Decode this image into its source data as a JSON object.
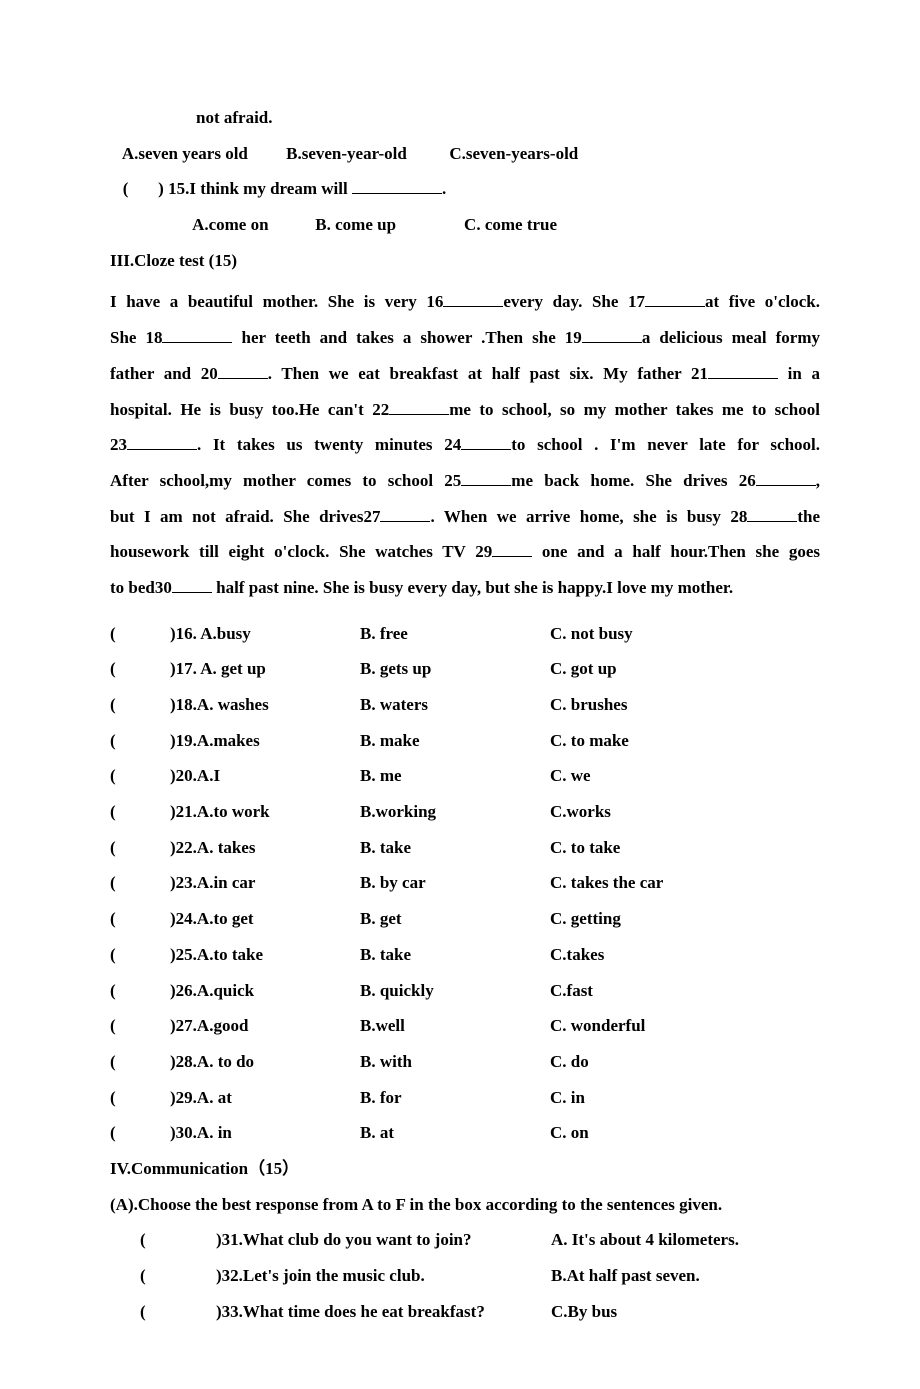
{
  "top": {
    "line_notafraid": "not afraid.",
    "q14opts": {
      "a": "A.seven years old",
      "b": "B.seven-year-old",
      "c": "C.seven-years-old"
    },
    "q15text_prefix": "(       ) 15.I think my dream will ",
    "q15text_suffix": ".",
    "q15opts": {
      "a": "A.come on",
      "b": "B. come up",
      "c": "C. come true"
    }
  },
  "sectionIII": "III.Cloze test (15)",
  "passage": {
    "l1a": "I have a beautiful mother. She is very 16",
    "l1b": "every day. She 17",
    "l1c": "at five o'clock.",
    "l2a": "She 18",
    "l2b": " her teeth and takes a shower .Then she 19",
    "l2c": "a delicious meal formy",
    "l3a": "father and 20",
    "l3b": ". Then we eat breakfast at half past six. My father 21",
    "l3c": " in a",
    "l4a": "hospital. He is busy too.He can't 22",
    "l4b": "me to school, so my mother takes me to school",
    "l5a": "23",
    "l5b": ". It takes us twenty minutes 24",
    "l5c": "to school . I'm never late for school.",
    "l6a": "After school,my mother comes to school 25",
    "l6b": "me back home. She drives 26",
    "l6c": ",",
    "l7a": "but I am not afraid. She drives27",
    "l7b": ". When we arrive home, she is busy 28",
    "l7c": "the",
    "l8a": "housework till eight o'clock. She watches TV 29",
    "l8b": " one and a half hour.Then she goes",
    "l9a": "to bed30",
    "l9b": " half past nine. She is busy every day, but she is happy.I love my mother."
  },
  "cloze": [
    {
      "n": ")16. A.busy",
      "b": "B. free",
      "c": "C. not busy"
    },
    {
      "n": ")17. A. get up",
      "b": "B. gets up",
      "c": "C. got up"
    },
    {
      "n": ")18.A. washes",
      "b": "B. waters",
      "c": "C. brushes"
    },
    {
      "n": ")19.A.makes",
      "b": "B. make",
      "c": "C. to make"
    },
    {
      "n": ")20.A.I",
      "b": "B. me",
      "c": "C. we"
    },
    {
      "n": ")21.A.to work",
      "b": "B.working",
      "c": "C.works"
    },
    {
      "n": ")22.A. takes",
      "b": "B. take",
      "c": "C. to take"
    },
    {
      "n": ")23.A.in car",
      "b": "B. by car",
      "c": "C. takes the car"
    },
    {
      "n": ")24.A.to get",
      "b": "B. get",
      "c": "C. getting"
    },
    {
      "n": ")25.A.to take",
      "b": "B. take",
      "c": "C.takes"
    },
    {
      "n": ")26.A.quick",
      "b": "B. quickly",
      "c": "C.fast"
    },
    {
      "n": ")27.A.good",
      "b": "B.well",
      "c": "C. wonderful"
    },
    {
      "n": ")28.A. to do",
      "b": "B. with",
      "c": "C. do"
    },
    {
      "n": ")29.A. at",
      "b": "B. for",
      "c": "C. in"
    },
    {
      "n": ")30.A. in",
      "b": "B. at",
      "c": "C. on"
    }
  ],
  "sectionIV": "IV.Communication（15）",
  "commA_instr": "(A).Choose the best response from A to F in the box according to the sentences given.",
  "comm": [
    {
      "q": ")31.What club do you want to join?",
      "a": "A. It's about 4 kilometers."
    },
    {
      "q": ")32.Let's join the music club.",
      "a": "B.At half past seven."
    },
    {
      "q": ")33.What time does he eat breakfast?",
      "a": "C.By bus"
    }
  ],
  "paren": "("
}
